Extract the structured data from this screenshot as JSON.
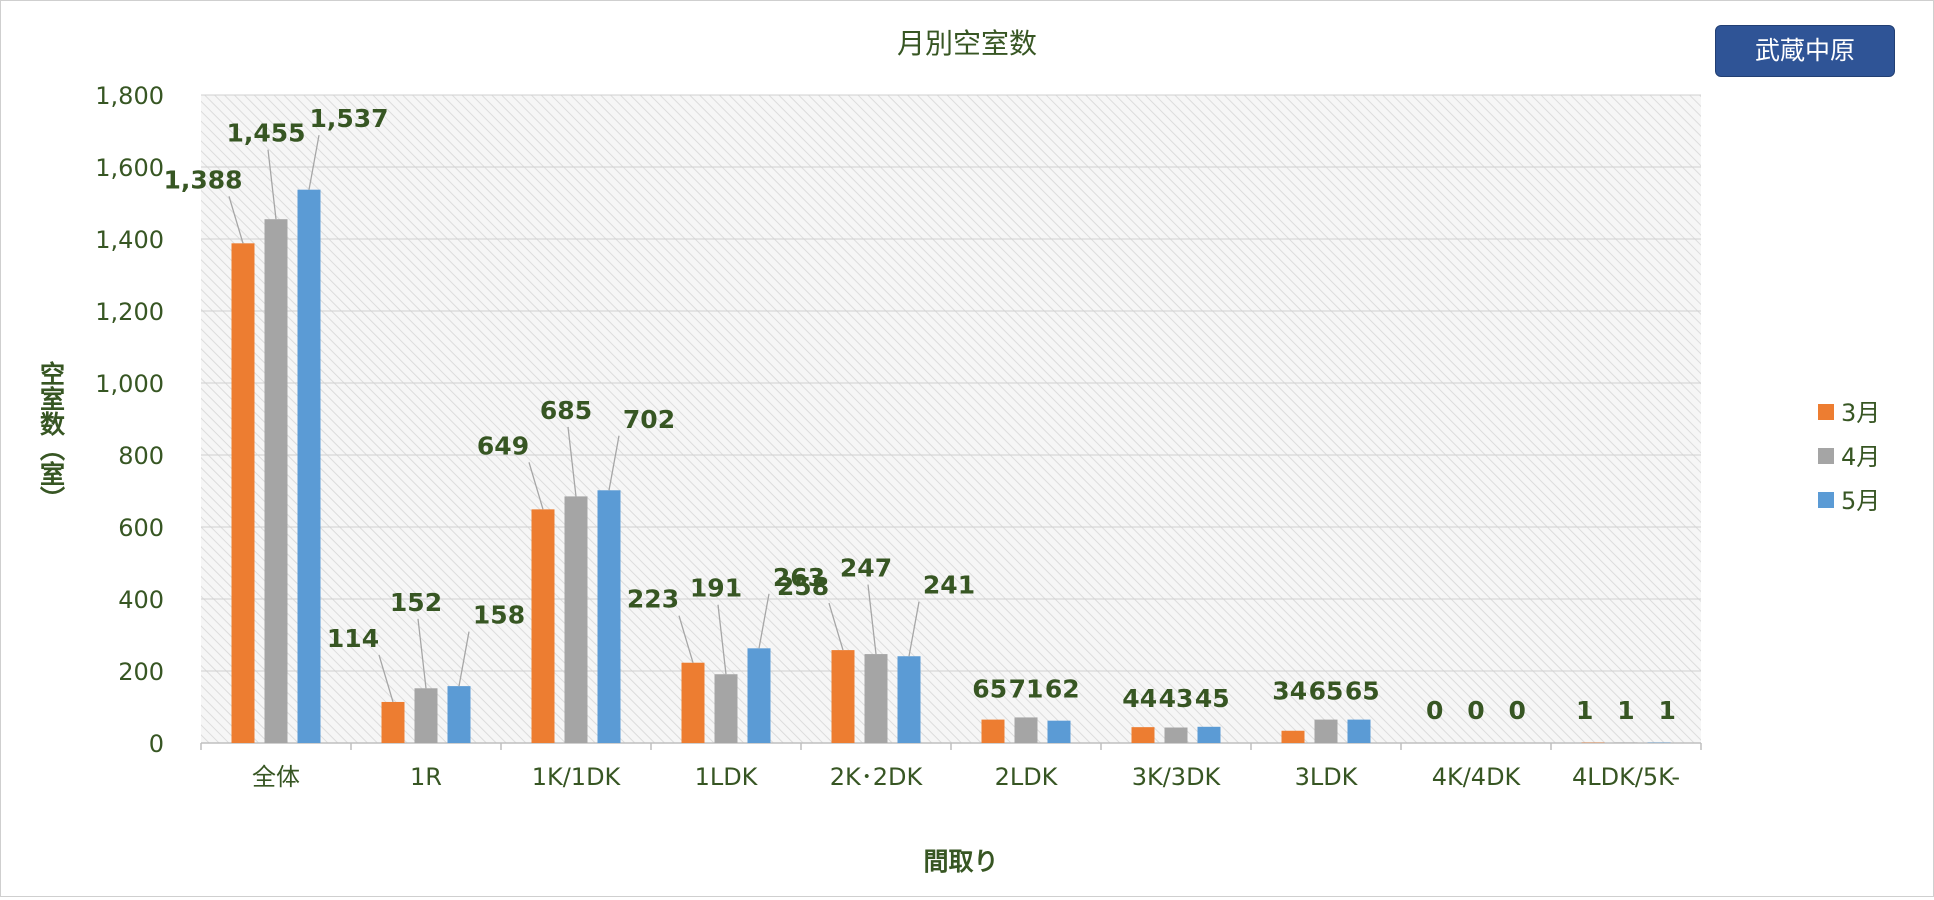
{
  "badge": {
    "label": "武蔵中原"
  },
  "colors": {
    "s1": "#ed7d31",
    "s2": "#a5a5a5",
    "s3": "#5b9bd5",
    "text": "#375623",
    "axis_text": "#375623"
  },
  "chart_data": {
    "type": "bar",
    "title": "月別空室数",
    "xlabel": "間取り",
    "ylabel": "空室数（室）",
    "ylim": [
      0,
      1800
    ],
    "yticks": [
      "0",
      "200",
      "400",
      "600",
      "800",
      "1,000",
      "1,200",
      "1,400",
      "1,600",
      "1,800"
    ],
    "grid": true,
    "legend_position": "right",
    "categories": [
      "全体",
      "1R",
      "1K/1DK",
      "1LDK",
      "2K･2DK",
      "2LDK",
      "3K/3DK",
      "3LDK",
      "4K/4DK",
      "4LDK/5K-"
    ],
    "series": [
      {
        "name": "3月",
        "values": [
          1388,
          114,
          649,
          223,
          258,
          65,
          44,
          34,
          0,
          1
        ],
        "labels": [
          "1,388",
          "114",
          "649",
          "223",
          "258",
          "65",
          "44",
          "34",
          "0",
          "1"
        ]
      },
      {
        "name": "4月",
        "values": [
          1455,
          152,
          685,
          191,
          247,
          71,
          43,
          65,
          0,
          1
        ],
        "labels": [
          "1,455",
          "152",
          "685",
          "191",
          "247",
          "71",
          "43",
          "65",
          "0",
          "1"
        ]
      },
      {
        "name": "5月",
        "values": [
          1537,
          158,
          702,
          263,
          241,
          62,
          45,
          65,
          0,
          1
        ],
        "labels": [
          "1,537",
          "158",
          "702",
          "263",
          "241",
          "62",
          "45",
          "65",
          "0",
          "1"
        ]
      }
    ]
  }
}
